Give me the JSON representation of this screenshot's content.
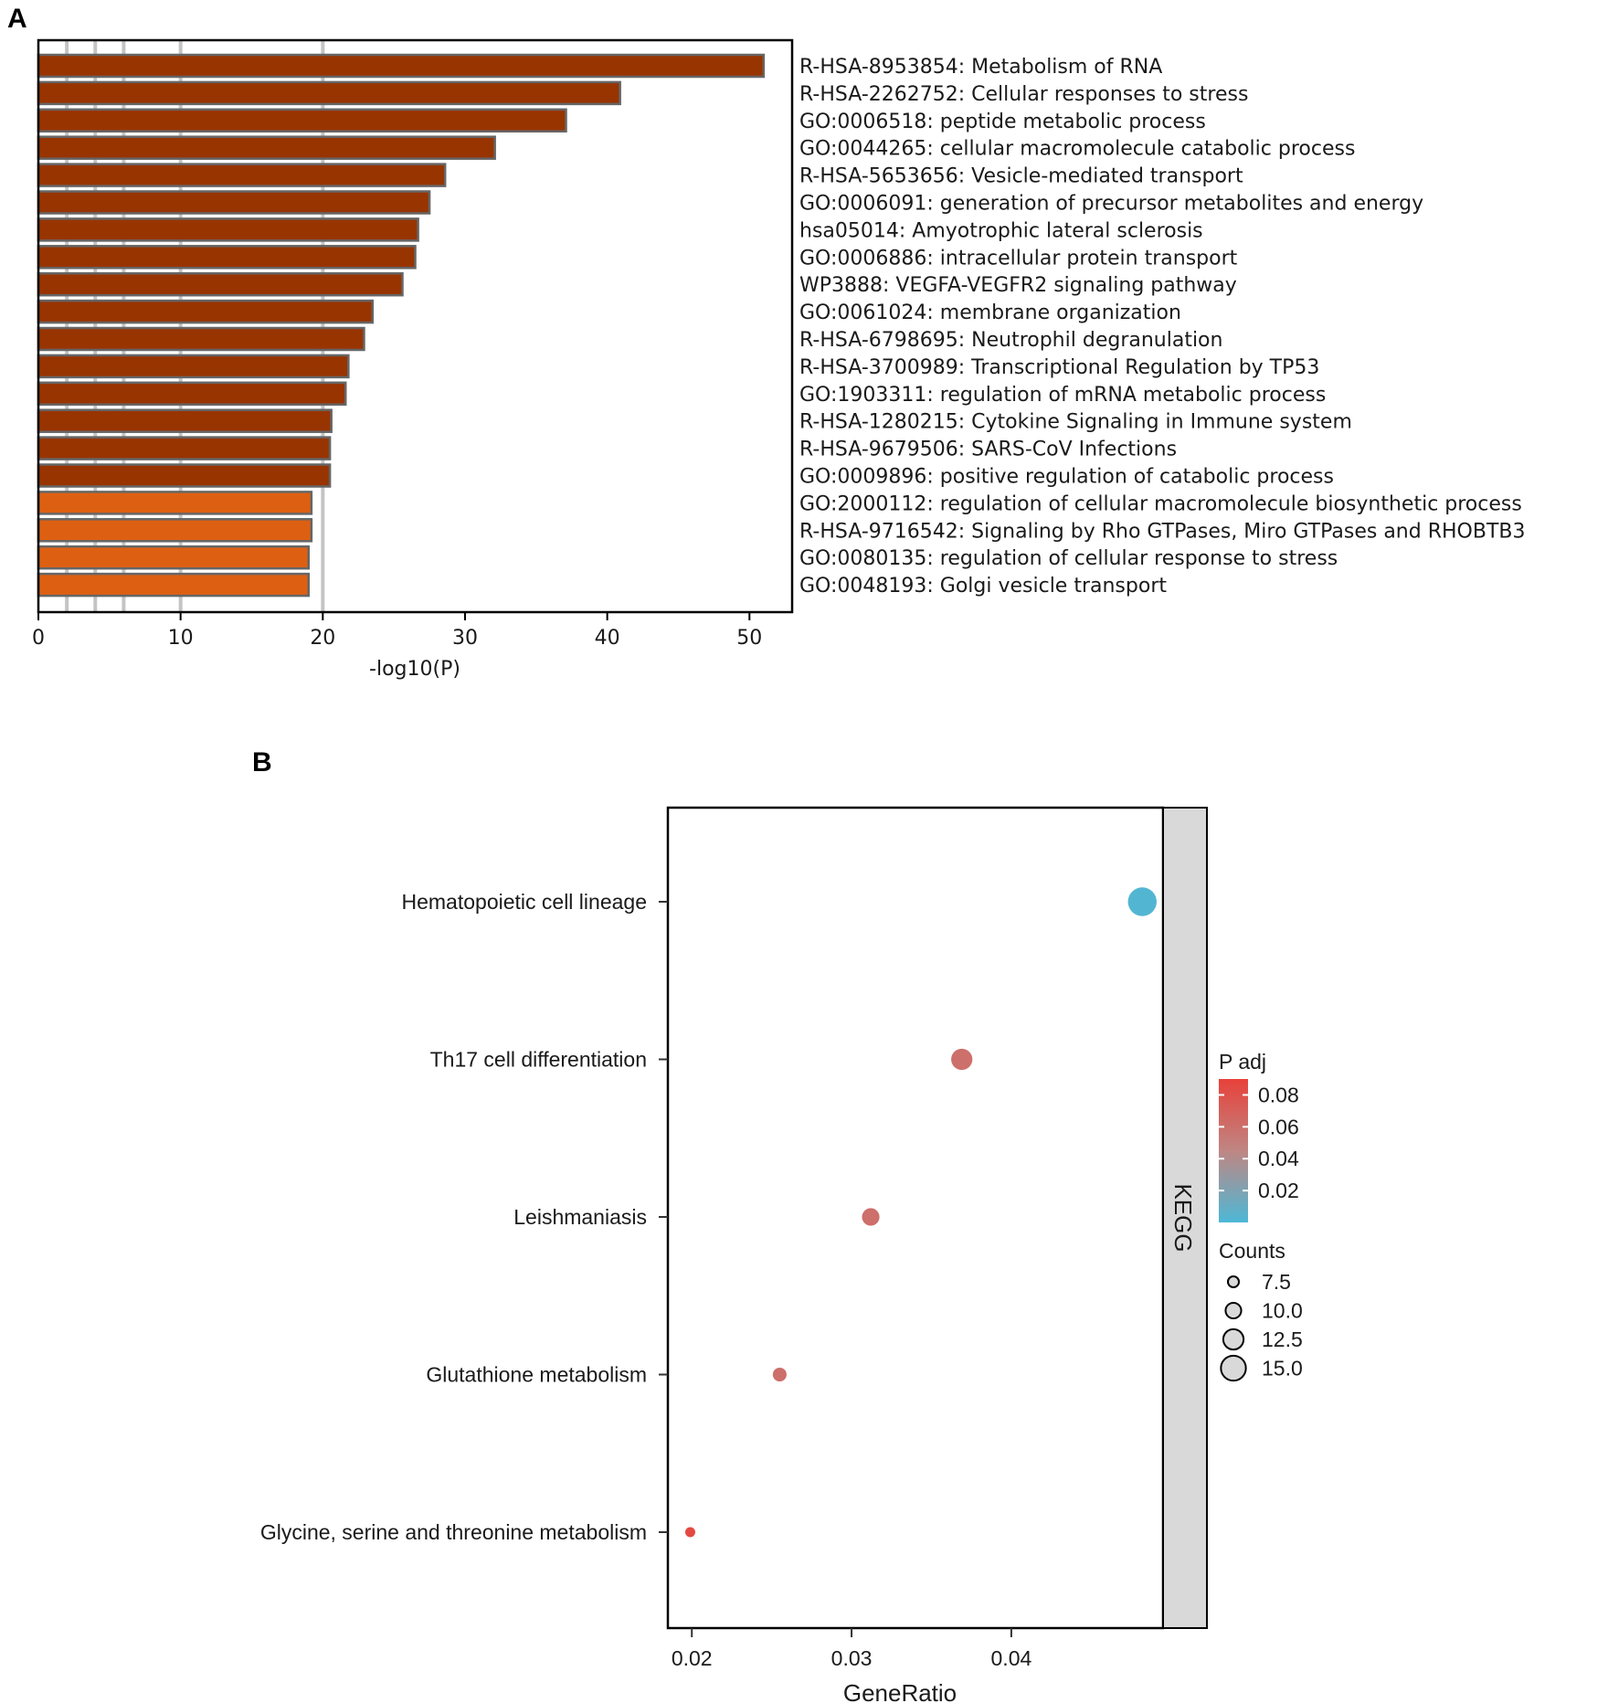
{
  "chart_data": [
    {
      "panel": "A",
      "type": "bar",
      "orientation": "horizontal",
      "xlabel": "-log10(P)",
      "xlim": [
        0,
        53
      ],
      "xticks": [
        0,
        10,
        20,
        30,
        40,
        50
      ],
      "vertical_guides": [
        2,
        4,
        6,
        10,
        20
      ],
      "colors": {
        "dark": "#983400",
        "light": "#DD6012",
        "bar_edge": "#666666",
        "guide": "#c4c4c4"
      },
      "bars": [
        {
          "label": "R-HSA-8953854: Metabolism of RNA",
          "value": 51.0,
          "shade": "dark"
        },
        {
          "label": "R-HSA-2262752: Cellular responses to stress",
          "value": 40.9,
          "shade": "dark"
        },
        {
          "label": "GO:0006518: peptide metabolic process",
          "value": 37.1,
          "shade": "dark"
        },
        {
          "label": "GO:0044265: cellular macromolecule catabolic process",
          "value": 32.1,
          "shade": "dark"
        },
        {
          "label": "R-HSA-5653656: Vesicle-mediated transport",
          "value": 28.6,
          "shade": "dark"
        },
        {
          "label": "GO:0006091: generation of precursor metabolites and energy",
          "value": 27.5,
          "shade": "dark"
        },
        {
          "label": "hsa05014: Amyotrophic lateral sclerosis",
          "value": 26.7,
          "shade": "dark"
        },
        {
          "label": "GO:0006886: intracellular protein transport",
          "value": 26.5,
          "shade": "dark"
        },
        {
          "label": "WP3888: VEGFA-VEGFR2 signaling pathway",
          "value": 25.6,
          "shade": "dark"
        },
        {
          "label": "GO:0061024: membrane organization",
          "value": 23.5,
          "shade": "dark"
        },
        {
          "label": "R-HSA-6798695: Neutrophil degranulation",
          "value": 22.9,
          "shade": "dark"
        },
        {
          "label": "R-HSA-3700989: Transcriptional Regulation by TP53",
          "value": 21.8,
          "shade": "dark"
        },
        {
          "label": "GO:1903311: regulation of mRNA metabolic process",
          "value": 21.6,
          "shade": "dark"
        },
        {
          "label": "R-HSA-1280215: Cytokine Signaling in Immune system",
          "value": 20.6,
          "shade": "dark"
        },
        {
          "label": "R-HSA-9679506: SARS-CoV Infections",
          "value": 20.5,
          "shade": "dark"
        },
        {
          "label": "GO:0009896: positive regulation of catabolic process",
          "value": 20.5,
          "shade": "dark"
        },
        {
          "label": "GO:2000112: regulation of cellular macromolecule biosynthetic process",
          "value": 19.2,
          "shade": "light"
        },
        {
          "label": "R-HSA-9716542: Signaling by Rho GTPases, Miro GTPases and RHOBTB3",
          "value": 19.2,
          "shade": "light"
        },
        {
          "label": "GO:0080135: regulation of cellular response to stress",
          "value": 19.0,
          "shade": "light"
        },
        {
          "label": "GO:0048193: Golgi vesicle transport",
          "value": 19.0,
          "shade": "light"
        }
      ]
    },
    {
      "panel": "B",
      "type": "scatter",
      "xlabel": "GeneRatio",
      "xlim": [
        0.0185,
        0.0495
      ],
      "xticks": [
        "0.02",
        "0.03",
        "0.04"
      ],
      "facet_label": "KEGG",
      "categories": [
        "Hematopoietic cell lineage",
        "Th17 cell differentiation",
        "Leishmaniasis",
        "Glutathione metabolism",
        "Glycine, serine and threonine metabolism"
      ],
      "points": [
        {
          "category": "Hematopoietic cell lineage",
          "gene_ratio": 0.0482,
          "counts": 17,
          "p_adj": 0.002
        },
        {
          "category": "Th17 cell differentiation",
          "gene_ratio": 0.0369,
          "counts": 13,
          "p_adj": 0.06
        },
        {
          "category": "Leishmaniasis",
          "gene_ratio": 0.0312,
          "counts": 11,
          "p_adj": 0.06
        },
        {
          "category": "Glutathione metabolism",
          "gene_ratio": 0.0255,
          "counts": 9,
          "p_adj": 0.06
        },
        {
          "category": "Glycine, serine and threonine metabolism",
          "gene_ratio": 0.0199,
          "counts": 7,
          "p_adj": 0.085
        }
      ],
      "color_legend": {
        "title": "P adj",
        "ticks": [
          "0.08",
          "0.06",
          "0.04",
          "0.02"
        ],
        "range": [
          0.0,
          0.09
        ],
        "color_low": "#4DB8D6",
        "color_mid": "#BF8683",
        "color_high": "#E8413A"
      },
      "size_legend": {
        "title": "Counts",
        "items": [
          {
            "label": "7.5",
            "value": 7.5
          },
          {
            "label": "10.0",
            "value": 10.0
          },
          {
            "label": "12.5",
            "value": 12.5
          },
          {
            "label": "15.0",
            "value": 15.0
          }
        ]
      }
    }
  ],
  "panel_letters": {
    "a": "A",
    "b": "B"
  }
}
